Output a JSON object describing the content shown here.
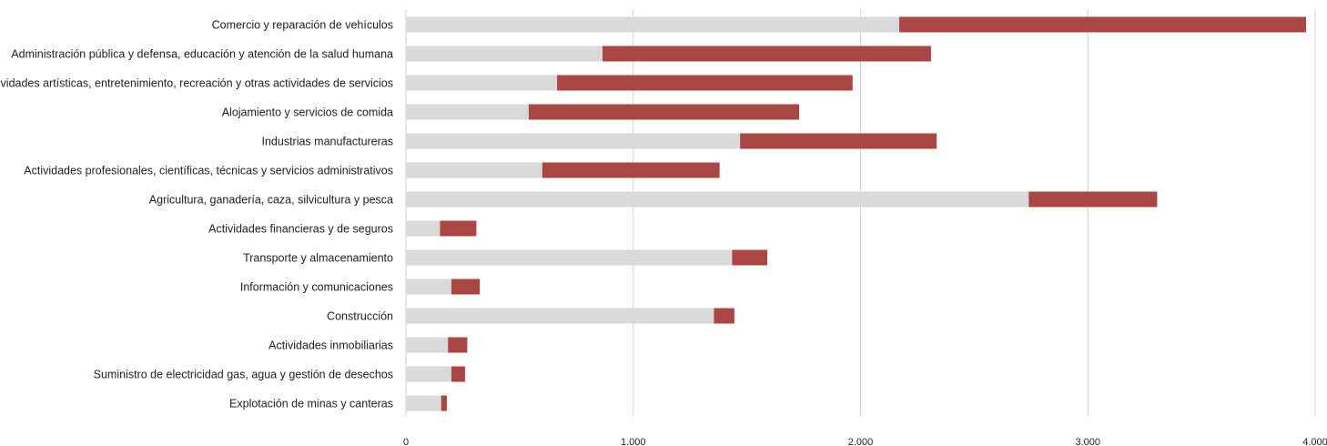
{
  "chart_data": {
    "type": "bar",
    "orientation": "horizontal",
    "stacked": true,
    "categories": [
      "Comercio y reparación de vehículos",
      "Administración pública y defensa, educación y atención de la salud humana",
      "Actividades artísticas, entretenimiento, recreación y otras actividades de servicios",
      "Alojamiento y servicios de comida",
      "Industrias manufactureras",
      "Actividades profesionales, científicas, técnicas y servicios administrativos",
      "Agricultura, ganadería, caza, silvicultura y pesca",
      "Actividades financieras y de seguros",
      "Transporte y almacenamiento",
      "Información y comunicaciones",
      "Construcción",
      "Actividades inmobiliarias",
      "Suministro de electricidad gas, agua y gestión de desechos",
      "Explotación de minas y canteras"
    ],
    "series": [
      {
        "color": "#d9d9d9",
        "values": [
          2170,
          865,
          665,
          540,
          1470,
          600,
          2740,
          150,
          1435,
          200,
          1355,
          185,
          200,
          155
        ]
      },
      {
        "color": "#aa4643",
        "values": [
          1790,
          1445,
          1300,
          1190,
          865,
          780,
          565,
          160,
          155,
          125,
          90,
          85,
          60,
          25
        ]
      }
    ],
    "xlim": [
      0,
      4000
    ],
    "xticks": [
      0,
      1000,
      2000,
      3000,
      4000
    ],
    "xtick_labels": [
      "0",
      "1.000",
      "2.000",
      "3.000",
      "4.000"
    ],
    "grid": "vertical",
    "legend": "none"
  }
}
